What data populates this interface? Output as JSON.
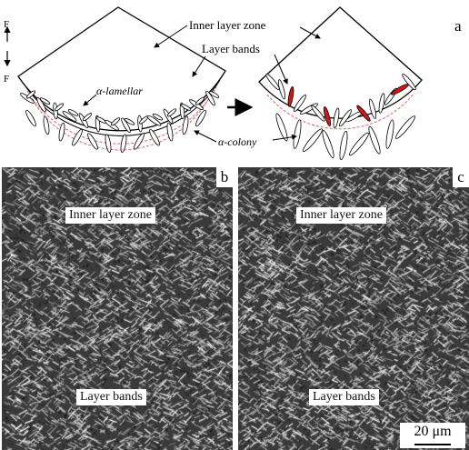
{
  "panel_a": {
    "letter": "a",
    "labels": {
      "inner_zone": "Inner layer zone",
      "layer_bands": "Layer bands",
      "alpha_lamellar": "α-lamellar",
      "alpha_colony": "α-colony"
    },
    "force_top": "F",
    "force_bottom": "F"
  },
  "panel_b": {
    "letter": "b",
    "inner_zone": "Inner layer zone",
    "layer_bands": "Layer bands"
  },
  "panel_c": {
    "letter": "c",
    "inner_zone": "Inner layer zone",
    "layer_bands": "Layer bands",
    "scale_bar": "20 μm"
  },
  "colors": {
    "outline": "#000000",
    "band_dash": "#e06060",
    "highlight": "#d01818",
    "micro_bg": "#3a3a3a"
  }
}
